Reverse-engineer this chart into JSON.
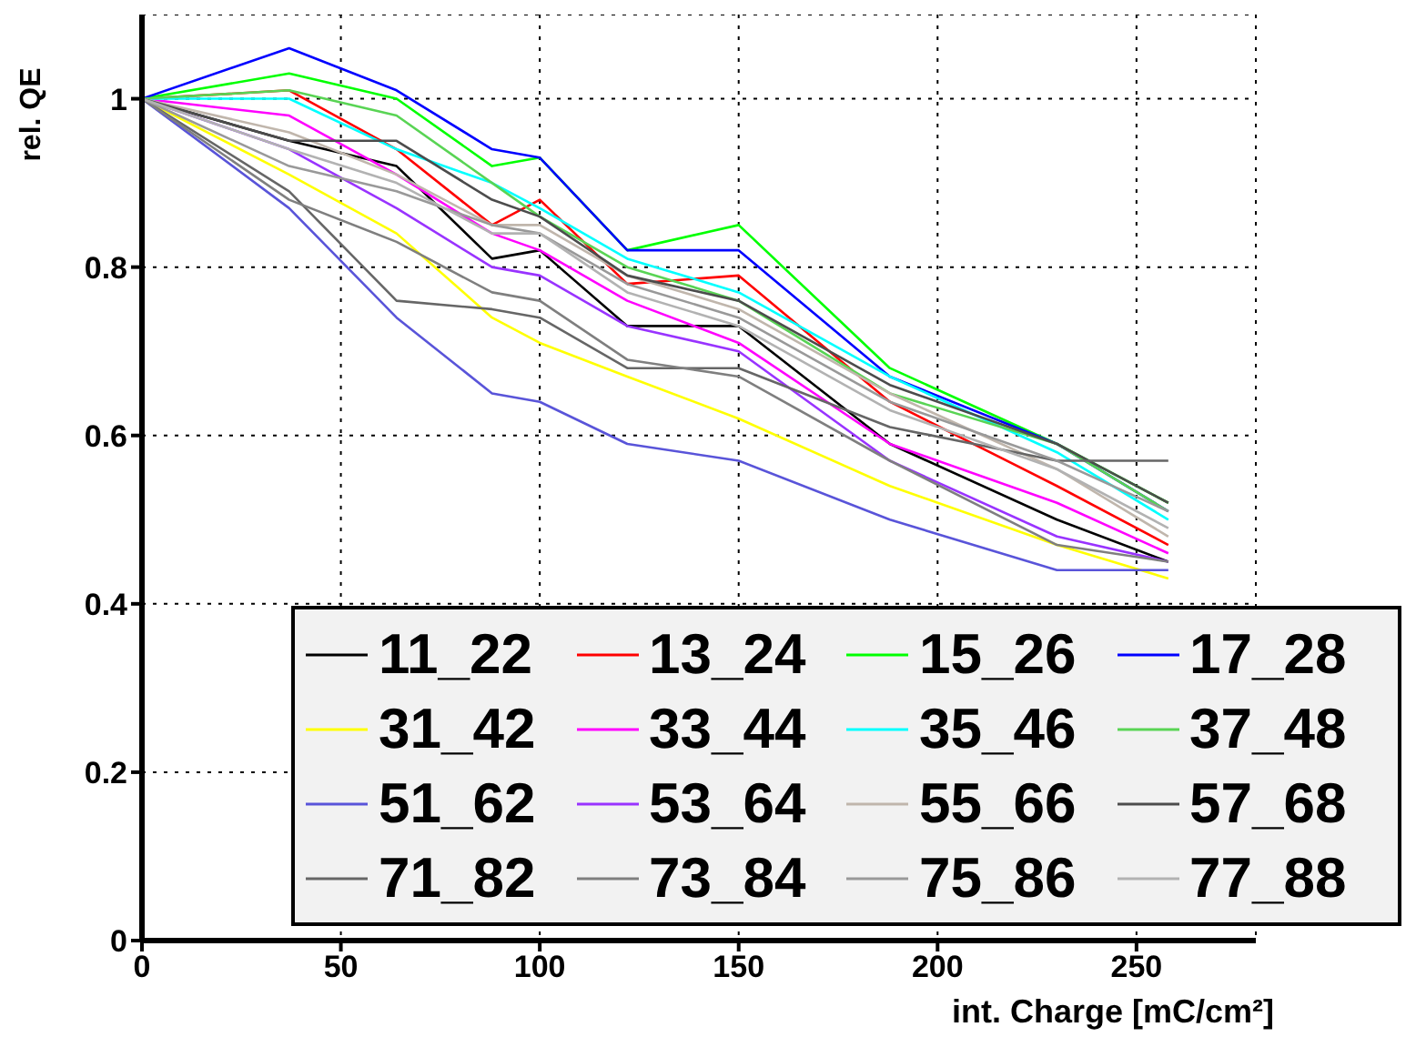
{
  "chart_data": {
    "type": "line",
    "xlabel": "int. Charge [mC/cm²]",
    "ylabel": "rel. QE",
    "x": [
      0,
      37,
      64,
      88,
      100,
      122,
      150,
      188,
      230,
      258
    ],
    "xlim": [
      0,
      280
    ],
    "xticks": [
      0,
      50,
      100,
      150,
      200,
      250
    ],
    "ylim": [
      0,
      1.1
    ],
    "yticks": [
      0,
      0.2,
      0.4,
      0.6,
      0.8,
      1
    ],
    "grid": true,
    "legend": "bottom",
    "line_style": "solid",
    "series": [
      {
        "name": "11_22",
        "color": "#000000",
        "values": [
          1,
          0.95,
          0.92,
          0.81,
          0.82,
          0.73,
          0.73,
          0.59,
          0.5,
          0.45
        ]
      },
      {
        "name": "13_24",
        "color": "#ff0000",
        "values": [
          1,
          1.01,
          0.94,
          0.85,
          0.88,
          0.78,
          0.79,
          0.64,
          0.54,
          0.47
        ]
      },
      {
        "name": "15_26",
        "color": "#00ff00",
        "values": [
          1,
          1.03,
          1.0,
          0.92,
          0.93,
          0.82,
          0.85,
          0.68,
          0.59,
          0.52
        ]
      },
      {
        "name": "17_28",
        "color": "#0000ff",
        "values": [
          1,
          1.06,
          1.01,
          0.94,
          0.93,
          0.82,
          0.82,
          0.67,
          0.59,
          0.51
        ]
      },
      {
        "name": "31_42",
        "color": "#ffff00",
        "values": [
          1,
          0.91,
          0.84,
          0.74,
          0.71,
          0.67,
          0.62,
          0.54,
          0.47,
          0.43
        ]
      },
      {
        "name": "33_44",
        "color": "#ff00ff",
        "values": [
          1,
          0.98,
          0.91,
          0.84,
          0.82,
          0.76,
          0.71,
          0.59,
          0.52,
          0.46
        ]
      },
      {
        "name": "35_46",
        "color": "#00ffff",
        "values": [
          1,
          1.0,
          0.94,
          0.9,
          0.87,
          0.81,
          0.77,
          0.67,
          0.58,
          0.5
        ]
      },
      {
        "name": "37_48",
        "color": "#59d454",
        "values": [
          1,
          1.01,
          0.98,
          0.9,
          0.86,
          0.8,
          0.76,
          0.65,
          0.59,
          0.51
        ]
      },
      {
        "name": "51_62",
        "color": "#5954d9",
        "values": [
          1,
          0.87,
          0.74,
          0.65,
          0.64,
          0.59,
          0.57,
          0.5,
          0.44,
          0.44
        ]
      },
      {
        "name": "53_64",
        "color": "#9933ff",
        "values": [
          1,
          0.94,
          0.87,
          0.8,
          0.79,
          0.73,
          0.7,
          0.57,
          0.48,
          0.45
        ]
      },
      {
        "name": "55_66",
        "color": "#c0b6ac",
        "values": [
          1,
          0.96,
          0.91,
          0.85,
          0.85,
          0.79,
          0.75,
          0.65,
          0.56,
          0.48
        ]
      },
      {
        "name": "57_68",
        "color": "#4c4c4c",
        "values": [
          1,
          0.95,
          0.95,
          0.88,
          0.86,
          0.79,
          0.76,
          0.66,
          0.59,
          0.52
        ]
      },
      {
        "name": "71_82",
        "color": "#666666",
        "values": [
          1,
          0.89,
          0.76,
          0.75,
          0.74,
          0.68,
          0.68,
          0.61,
          0.57,
          0.57
        ]
      },
      {
        "name": "73_84",
        "color": "#7f7f7f",
        "values": [
          1,
          0.88,
          0.83,
          0.77,
          0.76,
          0.69,
          0.67,
          0.57,
          0.47,
          0.45
        ]
      },
      {
        "name": "75_86",
        "color": "#999999",
        "values": [
          1,
          0.92,
          0.89,
          0.85,
          0.84,
          0.78,
          0.74,
          0.64,
          0.57,
          0.51
        ]
      },
      {
        "name": "77_88",
        "color": "#b2b2b2",
        "values": [
          1,
          0.94,
          0.9,
          0.84,
          0.84,
          0.77,
          0.73,
          0.63,
          0.56,
          0.49
        ]
      }
    ]
  }
}
